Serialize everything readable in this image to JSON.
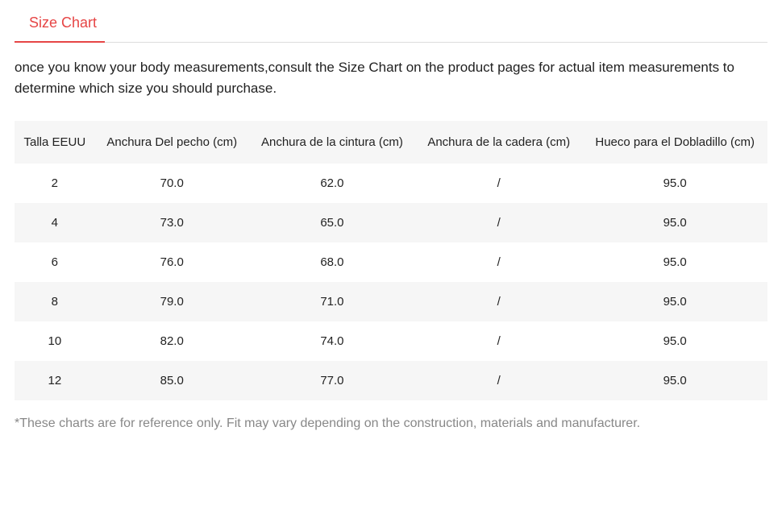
{
  "tab": {
    "label": "Size Chart"
  },
  "description": "once you know your body measurements,consult the Size Chart on the product pages for actual item measurements to determine which size you should purchase.",
  "table": {
    "columns": [
      "Talla EEUU",
      "Anchura Del pecho (cm)",
      "Anchura de la cintura (cm)",
      "Anchura de la cadera (cm)",
      "Hueco para el Dobladillo (cm)"
    ],
    "rows": [
      [
        "2",
        "70.0",
        "62.0",
        "/",
        "95.0"
      ],
      [
        "4",
        "73.0",
        "65.0",
        "/",
        "95.0"
      ],
      [
        "6",
        "76.0",
        "68.0",
        "/",
        "95.0"
      ],
      [
        "8",
        "79.0",
        "71.0",
        "/",
        "95.0"
      ],
      [
        "10",
        "82.0",
        "74.0",
        "/",
        "95.0"
      ],
      [
        "12",
        "85.0",
        "77.0",
        "/",
        "95.0"
      ]
    ],
    "header_bg": "#f6f6f6",
    "row_odd_bg": "#ffffff",
    "row_even_bg": "#f6f6f6",
    "text_color": "#222222",
    "font_size": 15
  },
  "footnote": "*These charts are for reference only. Fit may vary depending on the construction, materials and manufacturer.",
  "colors": {
    "accent": "#e64545",
    "border": "#dddddd",
    "muted": "#888888",
    "background": "#ffffff"
  }
}
